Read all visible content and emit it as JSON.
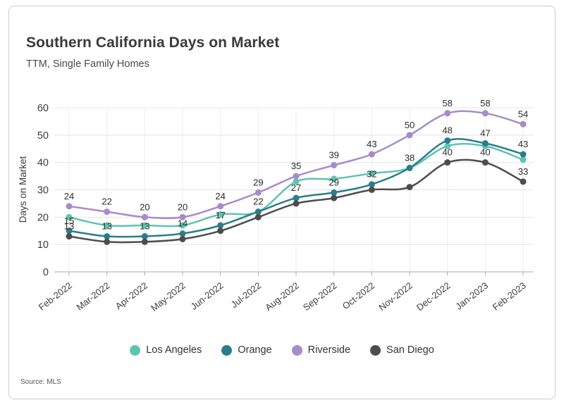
{
  "header": {
    "title": "Southern California Days on Market",
    "subtitle": "TTM, Single Family Homes"
  },
  "source": "Source: MLS",
  "chart_data": {
    "type": "line",
    "title": "Southern California Days on Market",
    "subtitle": "TTM, Single Family Homes",
    "xlabel": "",
    "ylabel": "Days on Market",
    "ylim": [
      0,
      60
    ],
    "yticks": [
      0,
      10,
      20,
      30,
      40,
      50,
      60
    ],
    "grid": true,
    "legend_position": "bottom",
    "categories": [
      "Feb-2022",
      "Mar-2022",
      "Apr-2022",
      "May-2022",
      "Jun-2022",
      "Jul-2022",
      "Aug-2022",
      "Sep-2022",
      "Oct-2022",
      "Nov-2022",
      "Dec-2022",
      "Jan-2023",
      "Feb-2023"
    ],
    "series": [
      {
        "name": "Los Angeles",
        "color": "#5ec4b0",
        "values": [
          20,
          17,
          17,
          17,
          21,
          22,
          33,
          34,
          36,
          38,
          46,
          46,
          41
        ],
        "labeled": [
          false,
          false,
          false,
          false,
          false,
          false,
          false,
          false,
          false,
          false,
          false,
          false,
          false
        ]
      },
      {
        "name": "Orange",
        "color": "#2a7e8c",
        "values": [
          15,
          13,
          13,
          14,
          17,
          22,
          27,
          29,
          32,
          38,
          48,
          47,
          43
        ],
        "labeled": [
          true,
          true,
          true,
          true,
          true,
          true,
          true,
          true,
          true,
          true,
          true,
          true,
          true
        ]
      },
      {
        "name": "Riverside",
        "color": "#a88bca",
        "values": [
          24,
          22,
          20,
          20,
          24,
          29,
          35,
          39,
          43,
          50,
          58,
          58,
          54
        ],
        "labeled": [
          true,
          true,
          true,
          true,
          true,
          true,
          true,
          true,
          true,
          true,
          true,
          true,
          true
        ]
      },
      {
        "name": "San Diego",
        "color": "#4d4d4d",
        "values": [
          13,
          11,
          11,
          12,
          15,
          20,
          25,
          27,
          30,
          31,
          40,
          40,
          33
        ],
        "labeled": [
          true,
          false,
          false,
          false,
          false,
          false,
          false,
          false,
          false,
          false,
          true,
          true,
          true
        ]
      }
    ]
  },
  "colors": {
    "grid_h": "#e4e4e4",
    "grid_v": "#ededed",
    "zero_line": "#a8a8a8",
    "label_text": "#2b2b2b",
    "tick_text": "#3c3c3c"
  }
}
